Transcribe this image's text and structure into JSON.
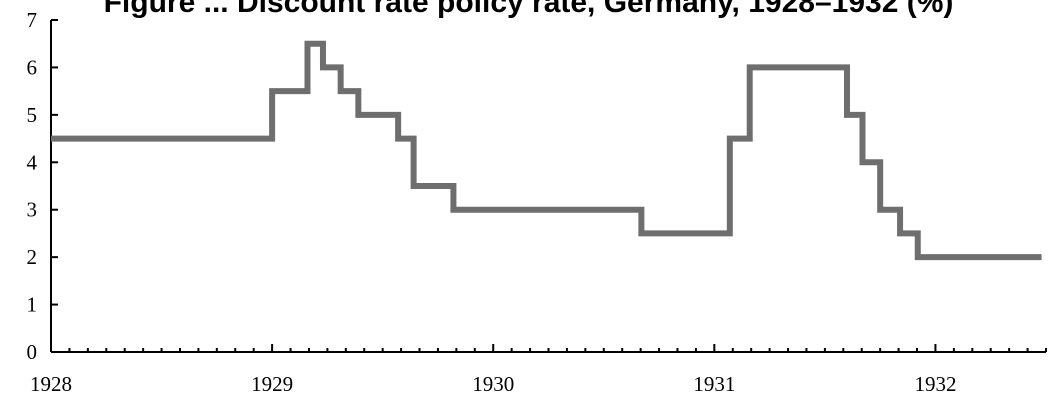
{
  "chart_data": {
    "type": "line",
    "step": true,
    "title": "Figure ... Discount rate policy rate, Germany, 1928–1932 (%)",
    "xlabel": "",
    "ylabel": "",
    "xlim": [
      1928,
      1932.5
    ],
    "ylim": [
      0,
      7
    ],
    "x_ticks": [
      "1928",
      "1929",
      "1930",
      "1931",
      "1932"
    ],
    "y_ticks": [
      "0",
      "1",
      "2",
      "3",
      "4",
      "5",
      "6",
      "7"
    ],
    "grid": false,
    "line_color": "#6e6e6e",
    "series": [
      {
        "name": "",
        "points": [
          [
            1928.0,
            4.5
          ],
          [
            1929.0,
            5.5
          ],
          [
            1929.16,
            6.5
          ],
          [
            1929.23,
            6.0
          ],
          [
            1929.31,
            5.5
          ],
          [
            1929.39,
            5.0
          ],
          [
            1929.57,
            4.5
          ],
          [
            1929.64,
            3.5
          ],
          [
            1929.82,
            3.0
          ],
          [
            1930.67,
            2.5
          ],
          [
            1931.07,
            4.5
          ],
          [
            1931.16,
            6.0
          ],
          [
            1931.6,
            5.0
          ],
          [
            1931.67,
            4.0
          ],
          [
            1931.75,
            3.0
          ],
          [
            1931.84,
            2.5
          ],
          [
            1931.92,
            2.0
          ],
          [
            1932.48,
            2.0
          ]
        ]
      }
    ]
  }
}
